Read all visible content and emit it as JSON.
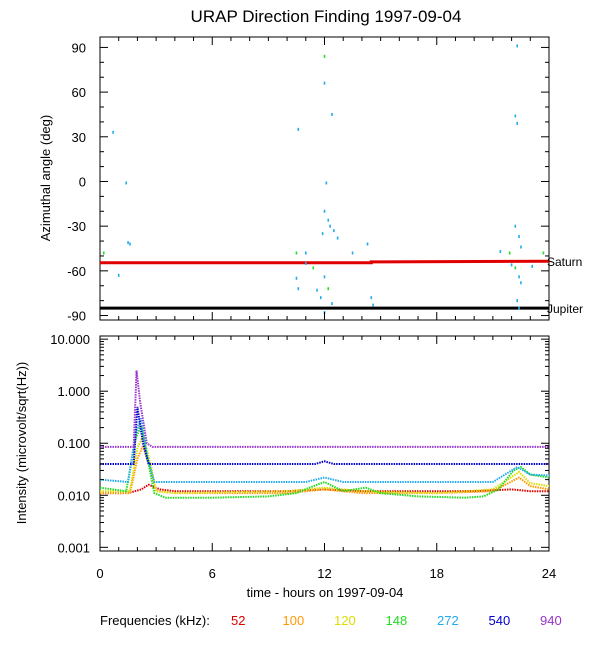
{
  "title": "URAP Direction Finding  1997-09-04",
  "chart_data": [
    {
      "type": "scatter",
      "name": "azimuth",
      "ylabel": "Azimuthal angle (deg)",
      "xlim": [
        0,
        24
      ],
      "ylim": [
        -93,
        97
      ],
      "yticks": [
        {
          "v": 90,
          "label": "90"
        },
        {
          "v": 60,
          "label": "60"
        },
        {
          "v": 30,
          "label": "30"
        },
        {
          "v": 0,
          "label": "0"
        },
        {
          "v": -30,
          "label": "-30"
        },
        {
          "v": -60,
          "label": "-60"
        },
        {
          "v": -90,
          "label": "-90"
        }
      ],
      "reference_lines": [
        {
          "name": "Saturn",
          "label": "Saturn",
          "color": "#e00000",
          "points": [
            [
              0,
              -54.5
            ],
            [
              14.5,
              -54.5
            ],
            [
              14.5,
              -54
            ],
            [
              24,
              -53.5
            ]
          ]
        },
        {
          "name": "Jupiter",
          "label": "Jupiter",
          "color": "#000000",
          "points": [
            [
              0,
              -85
            ],
            [
              24,
              -85
            ]
          ]
        }
      ],
      "scatter_points": [
        {
          "x": 0.7,
          "y": 33,
          "c": "#22aaee"
        },
        {
          "x": 1.0,
          "y": -63,
          "c": "#22aaee"
        },
        {
          "x": 1.4,
          "y": -1,
          "c": "#22aaee"
        },
        {
          "x": 1.5,
          "y": -41,
          "c": "#22aaee"
        },
        {
          "x": 1.6,
          "y": -42,
          "c": "#22aaee"
        },
        {
          "x": 0.2,
          "y": -48,
          "c": "#22dd22"
        },
        {
          "x": 10.6,
          "y": 35,
          "c": "#22aaee"
        },
        {
          "x": 10.5,
          "y": -48,
          "c": "#22dd22"
        },
        {
          "x": 10.5,
          "y": -65,
          "c": "#22aaee"
        },
        {
          "x": 10.6,
          "y": -72,
          "c": "#22aaee"
        },
        {
          "x": 11.0,
          "y": -48,
          "c": "#22aaee"
        },
        {
          "x": 11.0,
          "y": -55,
          "c": "#22aaee"
        },
        {
          "x": 11.4,
          "y": -58,
          "c": "#22dd22"
        },
        {
          "x": 11.6,
          "y": -73,
          "c": "#22aaee"
        },
        {
          "x": 11.8,
          "y": -78,
          "c": "#22aaee"
        },
        {
          "x": 12.0,
          "y": 84,
          "c": "#22dd22"
        },
        {
          "x": 12.0,
          "y": 66,
          "c": "#22aaee"
        },
        {
          "x": 12.1,
          "y": -1,
          "c": "#22aaee"
        },
        {
          "x": 12.0,
          "y": -20,
          "c": "#22aaee"
        },
        {
          "x": 12.2,
          "y": -26,
          "c": "#22aaee"
        },
        {
          "x": 12.3,
          "y": -30,
          "c": "#22aaee"
        },
        {
          "x": 12.4,
          "y": 45,
          "c": "#22aaee"
        },
        {
          "x": 11.9,
          "y": -35,
          "c": "#22aaee"
        },
        {
          "x": 12.5,
          "y": -33,
          "c": "#22aaee"
        },
        {
          "x": 12.0,
          "y": -64,
          "c": "#22aaee"
        },
        {
          "x": 12.2,
          "y": -72,
          "c": "#22dd22"
        },
        {
          "x": 12.4,
          "y": -82,
          "c": "#22aaee"
        },
        {
          "x": 12.0,
          "y": -88,
          "c": "#22aaee"
        },
        {
          "x": 12.7,
          "y": -38,
          "c": "#22aaee"
        },
        {
          "x": 13.5,
          "y": -48,
          "c": "#22aaee"
        },
        {
          "x": 14.3,
          "y": -42,
          "c": "#22aaee"
        },
        {
          "x": 14.5,
          "y": -78,
          "c": "#22aaee"
        },
        {
          "x": 14.6,
          "y": -83,
          "c": "#22aaee"
        },
        {
          "x": 22.3,
          "y": 91,
          "c": "#22aaee"
        },
        {
          "x": 22.2,
          "y": 44,
          "c": "#22aaee"
        },
        {
          "x": 22.3,
          "y": 39,
          "c": "#22aaee"
        },
        {
          "x": 22.2,
          "y": -30,
          "c": "#22aaee"
        },
        {
          "x": 22.4,
          "y": -37,
          "c": "#22aaee"
        },
        {
          "x": 22.5,
          "y": -44,
          "c": "#22aaee"
        },
        {
          "x": 21.4,
          "y": -47,
          "c": "#22aaee"
        },
        {
          "x": 21.9,
          "y": -48,
          "c": "#22dd22"
        },
        {
          "x": 22.0,
          "y": -56,
          "c": "#22aaee"
        },
        {
          "x": 22.2,
          "y": -58,
          "c": "#22dd22"
        },
        {
          "x": 22.4,
          "y": -64,
          "c": "#22aaee"
        },
        {
          "x": 22.3,
          "y": -80,
          "c": "#22aaee"
        },
        {
          "x": 22.4,
          "y": -85,
          "c": "#22aaee"
        },
        {
          "x": 22.5,
          "y": -68,
          "c": "#22aaee"
        },
        {
          "x": 23.7,
          "y": -48,
          "c": "#22dd22"
        },
        {
          "x": 23.1,
          "y": -57,
          "c": "#22aaee"
        }
      ],
      "annotations": [
        "Saturn",
        "Jupiter"
      ]
    },
    {
      "type": "line",
      "name": "intensity",
      "ylabel": "Intensity (microvolt/sqrt(Hz))",
      "xlabel": "time - hours on 1997-09-04",
      "y_scale": "log",
      "xlim": [
        0,
        24
      ],
      "ylim": [
        0.00085,
        11.5
      ],
      "xticks": [
        {
          "v": 0,
          "label": "0"
        },
        {
          "v": 6,
          "label": "6"
        },
        {
          "v": 12,
          "label": "12"
        },
        {
          "v": 18,
          "label": "18"
        },
        {
          "v": 24,
          "label": "24"
        }
      ],
      "yticks": [
        {
          "v": 10,
          "label": "10.000"
        },
        {
          "v": 1,
          "label": "1.000"
        },
        {
          "v": 0.1,
          "label": "0.100"
        },
        {
          "v": 0.01,
          "label": "0.010"
        },
        {
          "v": 0.001,
          "label": "0.001"
        }
      ],
      "series": [
        {
          "name": "52",
          "color": "#e00000",
          "points": [
            [
              0,
              0.011
            ],
            [
              1.5,
              0.011
            ],
            [
              2.2,
              0.013
            ],
            [
              2.6,
              0.016
            ],
            [
              3.2,
              0.013
            ],
            [
              4,
              0.012
            ],
            [
              10,
              0.012
            ],
            [
              12,
              0.013
            ],
            [
              14,
              0.012
            ],
            [
              20,
              0.012
            ],
            [
              22,
              0.013
            ],
            [
              23,
              0.012
            ],
            [
              24,
              0.012
            ]
          ]
        },
        {
          "name": "100",
          "color": "#ff9900",
          "points": [
            [
              0,
              0.011
            ],
            [
              1.6,
              0.011
            ],
            [
              2.0,
              0.05
            ],
            [
              2.3,
              0.09
            ],
            [
              2.7,
              0.03
            ],
            [
              3.0,
              0.012
            ],
            [
              4,
              0.011
            ],
            [
              10,
              0.011
            ],
            [
              12,
              0.013
            ],
            [
              14,
              0.011
            ],
            [
              18,
              0.011
            ],
            [
              21,
              0.012
            ],
            [
              22.4,
              0.022
            ],
            [
              23,
              0.015
            ],
            [
              24,
              0.013
            ]
          ]
        },
        {
          "name": "120",
          "color": "#dddd00",
          "points": [
            [
              0,
              0.012
            ],
            [
              1.6,
              0.012
            ],
            [
              2.0,
              0.08
            ],
            [
              2.3,
              0.14
            ],
            [
              2.7,
              0.04
            ],
            [
              3.0,
              0.012
            ],
            [
              4,
              0.011
            ],
            [
              10,
              0.012
            ],
            [
              12,
              0.014
            ],
            [
              14,
              0.012
            ],
            [
              18,
              0.011
            ],
            [
              21,
              0.013
            ],
            [
              22.4,
              0.028
            ],
            [
              23,
              0.017
            ],
            [
              24,
              0.015
            ]
          ]
        },
        {
          "name": "148",
          "color": "#22dd22",
          "points": [
            [
              0,
              0.014
            ],
            [
              1.4,
              0.012
            ],
            [
              1.9,
              0.12
            ],
            [
              2.2,
              0.22
            ],
            [
              2.5,
              0.06
            ],
            [
              2.9,
              0.011
            ],
            [
              3.5,
              0.009
            ],
            [
              6,
              0.009
            ],
            [
              9,
              0.0095
            ],
            [
              10.5,
              0.011
            ],
            [
              11.2,
              0.014
            ],
            [
              12,
              0.018
            ],
            [
              13,
              0.012
            ],
            [
              14.2,
              0.014
            ],
            [
              15,
              0.011
            ],
            [
              17,
              0.0095
            ],
            [
              19.5,
              0.009
            ],
            [
              20.5,
              0.0095
            ],
            [
              21.3,
              0.013
            ],
            [
              22.1,
              0.03
            ],
            [
              22.5,
              0.035
            ],
            [
              23,
              0.025
            ],
            [
              24,
              0.022
            ]
          ]
        },
        {
          "name": "272",
          "color": "#22aaee",
          "points": [
            [
              0,
              0.02
            ],
            [
              1.5,
              0.018
            ],
            [
              1.9,
              0.15
            ],
            [
              2.2,
              0.3
            ],
            [
              2.5,
              0.06
            ],
            [
              2.9,
              0.018
            ],
            [
              11,
              0.018
            ],
            [
              12,
              0.022
            ],
            [
              13,
              0.018
            ],
            [
              21,
              0.018
            ],
            [
              22.3,
              0.035
            ],
            [
              23,
              0.025
            ],
            [
              24,
              0.024
            ]
          ]
        },
        {
          "name": "540",
          "color": "#0000cc",
          "points": [
            [
              0,
              0.04
            ],
            [
              1.8,
              0.04
            ],
            [
              2.0,
              0.5
            ],
            [
              2.3,
              0.1
            ],
            [
              2.6,
              0.04
            ],
            [
              11.5,
              0.04
            ],
            [
              12,
              0.045
            ],
            [
              12.5,
              0.04
            ],
            [
              24,
              0.04
            ]
          ]
        },
        {
          "name": "940",
          "color": "#9933cc",
          "points": [
            [
              0,
              0.085
            ],
            [
              1.8,
              0.085
            ],
            [
              1.95,
              2.5
            ],
            [
              2.15,
              0.6
            ],
            [
              2.5,
              0.1
            ],
            [
              2.8,
              0.085
            ],
            [
              24,
              0.085
            ]
          ]
        }
      ]
    }
  ],
  "legend": {
    "label": "Frequencies (kHz):",
    "items": [
      {
        "text": "52",
        "color": "#e00000"
      },
      {
        "text": "100",
        "color": "#ff9900"
      },
      {
        "text": "120",
        "color": "#dddd00"
      },
      {
        "text": "148",
        "color": "#22dd22"
      },
      {
        "text": "272",
        "color": "#22aaee"
      },
      {
        "text": "540",
        "color": "#0000cc"
      },
      {
        "text": "940",
        "color": "#9933cc"
      }
    ]
  }
}
